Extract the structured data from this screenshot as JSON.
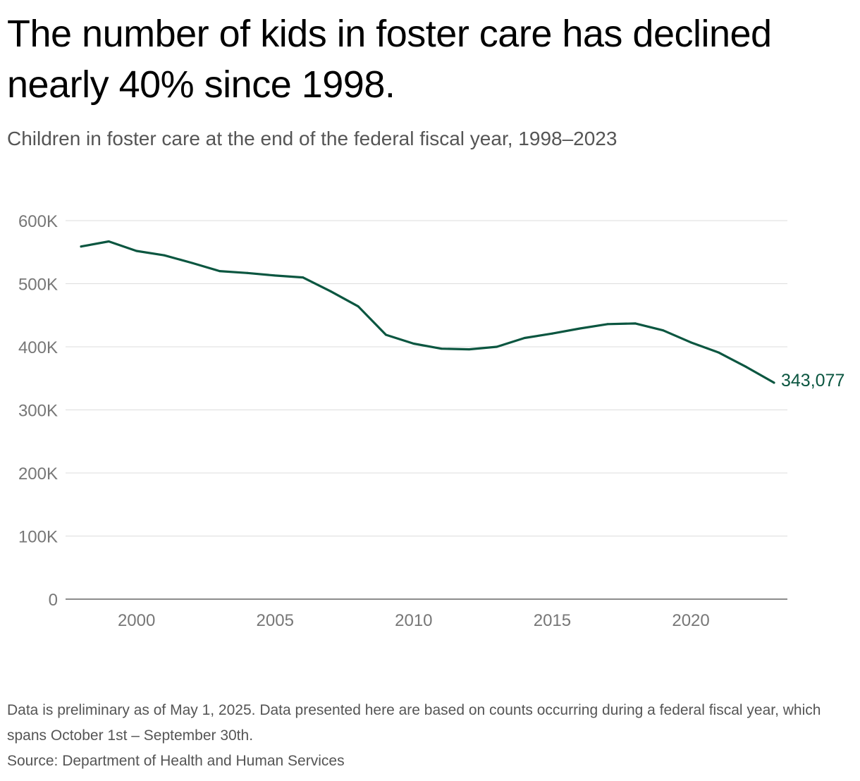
{
  "title": "The number of kids in foster care has declined nearly 40% since 1998.",
  "subtitle": "Children in foster care at the end of the federal fiscal year, 1998–2023",
  "footer": {
    "note": "Data is preliminary as of May 1, 2025. Data presented here are based on counts occurring during a federal fiscal year, which spans October 1st – September 30th.",
    "source": "Source: Department of Health and Human Services"
  },
  "colors": {
    "line": "#0b5640",
    "grid": "#dddddd",
    "axis": "#666666",
    "tick_text": "#777777"
  },
  "chart_data": {
    "type": "line",
    "title": "The number of kids in foster care has declined nearly 40% since 1998.",
    "subtitle": "Children in foster care at the end of the federal fiscal year, 1998–2023",
    "xlabel": "",
    "ylabel": "",
    "x": [
      1998,
      1999,
      2000,
      2001,
      2002,
      2003,
      2004,
      2005,
      2006,
      2007,
      2008,
      2009,
      2010,
      2011,
      2012,
      2013,
      2014,
      2015,
      2016,
      2017,
      2018,
      2019,
      2020,
      2021,
      2022,
      2023
    ],
    "series": [
      {
        "name": "",
        "values": [
          559000,
          567000,
          552000,
          545000,
          533000,
          520000,
          517000,
          513000,
          510000,
          488000,
          464000,
          419000,
          405000,
          397000,
          396000,
          400000,
          414000,
          421000,
          429000,
          436000,
          437000,
          426000,
          407000,
          391000,
          368000,
          343077
        ]
      }
    ],
    "xlim": [
      1998,
      2023
    ],
    "ylim": [
      0,
      600000
    ],
    "x_ticks": [
      2000,
      2005,
      2010,
      2015,
      2020
    ],
    "x_tick_labels": [
      "2000",
      "2005",
      "2010",
      "2015",
      "2020"
    ],
    "y_ticks": [
      0,
      100000,
      200000,
      300000,
      400000,
      500000,
      600000
    ],
    "y_tick_labels": [
      "0",
      "100K",
      "200K",
      "300K",
      "400K",
      "500K",
      "600K"
    ],
    "end_label": "343,077",
    "grid": true,
    "legend": "none"
  }
}
